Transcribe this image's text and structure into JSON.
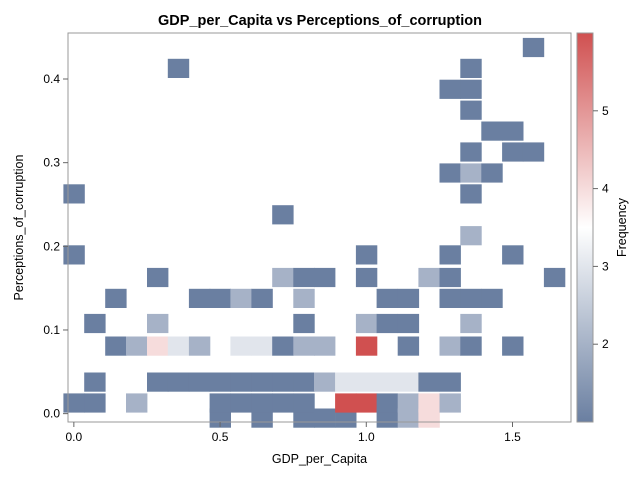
{
  "chart_data": {
    "type": "heatmap",
    "title": "GDP_per_Capita vs Perceptions_of_corruption",
    "xlabel": "GDP_per_Capita",
    "ylabel": "Perceptions_of_corruption",
    "xlim": [
      -0.02,
      1.7
    ],
    "ylim": [
      -0.01,
      0.455
    ],
    "x_ticks": [
      0.0,
      0.5,
      1.0,
      1.5
    ],
    "x_tick_labels": [
      "0.0",
      "0.5",
      "1.0",
      "1.5"
    ],
    "y_ticks": [
      0.0,
      0.1,
      0.2,
      0.3,
      0.4
    ],
    "y_tick_labels": [
      "0.0",
      "0.1",
      "0.2",
      "0.3",
      "0.4"
    ],
    "bin_width_x": 0.0714,
    "bin_height_y": 0.02235,
    "colorbar": {
      "label": "Frequency",
      "min": 1,
      "max": 6,
      "ticks": [
        2,
        3,
        4,
        5
      ],
      "tick_labels": [
        "2",
        "3",
        "4",
        "5"
      ],
      "low_color": "#6a7fa1",
      "mid_color": "#ffffff",
      "high_color": "#d05050"
    },
    "bins": [
      {
        "x": 0.0,
        "y": 0.013,
        "count": 1
      },
      {
        "x": 0.0,
        "y": 0.19,
        "count": 1
      },
      {
        "x": 0.0,
        "y": 0.263,
        "count": 1
      },
      {
        "x": 0.071,
        "y": 0.013,
        "count": 1
      },
      {
        "x": 0.071,
        "y": 0.038,
        "count": 1
      },
      {
        "x": 0.071,
        "y": 0.108,
        "count": 1
      },
      {
        "x": 0.143,
        "y": 0.081,
        "count": 1
      },
      {
        "x": 0.143,
        "y": 0.138,
        "count": 1
      },
      {
        "x": 0.214,
        "y": 0.013,
        "count": 2
      },
      {
        "x": 0.214,
        "y": 0.081,
        "count": 2
      },
      {
        "x": 0.286,
        "y": 0.038,
        "count": 1
      },
      {
        "x": 0.286,
        "y": 0.081,
        "count": 4
      },
      {
        "x": 0.286,
        "y": 0.108,
        "count": 2
      },
      {
        "x": 0.286,
        "y": 0.163,
        "count": 1
      },
      {
        "x": 0.357,
        "y": 0.038,
        "count": 1
      },
      {
        "x": 0.357,
        "y": 0.081,
        "count": 3
      },
      {
        "x": 0.357,
        "y": 0.413,
        "count": 1
      },
      {
        "x": 0.429,
        "y": 0.038,
        "count": 1
      },
      {
        "x": 0.429,
        "y": 0.081,
        "count": 2
      },
      {
        "x": 0.429,
        "y": 0.138,
        "count": 1
      },
      {
        "x": 0.5,
        "y": -0.005,
        "count": 1
      },
      {
        "x": 0.5,
        "y": 0.013,
        "count": 1
      },
      {
        "x": 0.5,
        "y": 0.038,
        "count": 1
      },
      {
        "x": 0.5,
        "y": 0.138,
        "count": 1
      },
      {
        "x": 0.571,
        "y": 0.013,
        "count": 1
      },
      {
        "x": 0.571,
        "y": 0.038,
        "count": 1
      },
      {
        "x": 0.571,
        "y": 0.081,
        "count": 3
      },
      {
        "x": 0.571,
        "y": 0.138,
        "count": 2
      },
      {
        "x": 0.643,
        "y": -0.005,
        "count": 1
      },
      {
        "x": 0.643,
        "y": 0.013,
        "count": 1
      },
      {
        "x": 0.643,
        "y": 0.038,
        "count": 1
      },
      {
        "x": 0.643,
        "y": 0.081,
        "count": 3
      },
      {
        "x": 0.643,
        "y": 0.138,
        "count": 1
      },
      {
        "x": 0.714,
        "y": 0.013,
        "count": 1
      },
      {
        "x": 0.714,
        "y": 0.038,
        "count": 1
      },
      {
        "x": 0.714,
        "y": 0.081,
        "count": 1
      },
      {
        "x": 0.714,
        "y": 0.163,
        "count": 2
      },
      {
        "x": 0.714,
        "y": 0.238,
        "count": 1
      },
      {
        "x": 0.786,
        "y": -0.005,
        "count": 1
      },
      {
        "x": 0.786,
        "y": 0.013,
        "count": 1
      },
      {
        "x": 0.786,
        "y": 0.038,
        "count": 1
      },
      {
        "x": 0.786,
        "y": 0.081,
        "count": 2
      },
      {
        "x": 0.786,
        "y": 0.108,
        "count": 1
      },
      {
        "x": 0.786,
        "y": 0.138,
        "count": 2
      },
      {
        "x": 0.786,
        "y": 0.163,
        "count": 1
      },
      {
        "x": 0.857,
        "y": -0.005,
        "count": 1
      },
      {
        "x": 0.857,
        "y": 0.038,
        "count": 2
      },
      {
        "x": 0.857,
        "y": 0.081,
        "count": 2
      },
      {
        "x": 0.857,
        "y": 0.163,
        "count": 1
      },
      {
        "x": 0.929,
        "y": -0.005,
        "count": 1
      },
      {
        "x": 0.929,
        "y": 0.013,
        "count": 6
      },
      {
        "x": 0.929,
        "y": 0.038,
        "count": 3
      },
      {
        "x": 1.0,
        "y": 0.013,
        "count": 6
      },
      {
        "x": 1.0,
        "y": 0.038,
        "count": 3
      },
      {
        "x": 1.0,
        "y": 0.081,
        "count": 6
      },
      {
        "x": 1.0,
        "y": 0.108,
        "count": 2
      },
      {
        "x": 1.0,
        "y": 0.163,
        "count": 1
      },
      {
        "x": 1.0,
        "y": 0.19,
        "count": 1
      },
      {
        "x": 1.071,
        "y": -0.005,
        "count": 1
      },
      {
        "x": 1.071,
        "y": 0.013,
        "count": 1
      },
      {
        "x": 1.071,
        "y": 0.038,
        "count": 3
      },
      {
        "x": 1.071,
        "y": 0.108,
        "count": 1
      },
      {
        "x": 1.071,
        "y": 0.138,
        "count": 1
      },
      {
        "x": 1.143,
        "y": -0.005,
        "count": 2
      },
      {
        "x": 1.143,
        "y": 0.013,
        "count": 2
      },
      {
        "x": 1.143,
        "y": 0.038,
        "count": 3
      },
      {
        "x": 1.143,
        "y": 0.081,
        "count": 1
      },
      {
        "x": 1.143,
        "y": 0.108,
        "count": 1
      },
      {
        "x": 1.143,
        "y": 0.138,
        "count": 1
      },
      {
        "x": 1.214,
        "y": -0.005,
        "count": 4
      },
      {
        "x": 1.214,
        "y": 0.013,
        "count": 4
      },
      {
        "x": 1.214,
        "y": 0.038,
        "count": 1
      },
      {
        "x": 1.214,
        "y": 0.163,
        "count": 2
      },
      {
        "x": 1.286,
        "y": 0.013,
        "count": 2
      },
      {
        "x": 1.286,
        "y": 0.038,
        "count": 1
      },
      {
        "x": 1.286,
        "y": 0.081,
        "count": 2
      },
      {
        "x": 1.286,
        "y": 0.138,
        "count": 1
      },
      {
        "x": 1.286,
        "y": 0.163,
        "count": 1
      },
      {
        "x": 1.286,
        "y": 0.19,
        "count": 1
      },
      {
        "x": 1.286,
        "y": 0.288,
        "count": 1
      },
      {
        "x": 1.286,
        "y": 0.388,
        "count": 1
      },
      {
        "x": 1.357,
        "y": 0.081,
        "count": 1
      },
      {
        "x": 1.357,
        "y": 0.108,
        "count": 2
      },
      {
        "x": 1.357,
        "y": 0.138,
        "count": 1
      },
      {
        "x": 1.357,
        "y": 0.213,
        "count": 2
      },
      {
        "x": 1.357,
        "y": 0.263,
        "count": 1
      },
      {
        "x": 1.357,
        "y": 0.288,
        "count": 2
      },
      {
        "x": 1.357,
        "y": 0.313,
        "count": 1
      },
      {
        "x": 1.357,
        "y": 0.363,
        "count": 1
      },
      {
        "x": 1.357,
        "y": 0.388,
        "count": 1
      },
      {
        "x": 1.357,
        "y": 0.413,
        "count": 1
      },
      {
        "x": 1.429,
        "y": 0.138,
        "count": 1
      },
      {
        "x": 1.429,
        "y": 0.288,
        "count": 1
      },
      {
        "x": 1.429,
        "y": 0.338,
        "count": 1
      },
      {
        "x": 1.5,
        "y": 0.081,
        "count": 1
      },
      {
        "x": 1.5,
        "y": 0.19,
        "count": 1
      },
      {
        "x": 1.5,
        "y": 0.313,
        "count": 1
      },
      {
        "x": 1.5,
        "y": 0.338,
        "count": 1
      },
      {
        "x": 1.571,
        "y": 0.313,
        "count": 1
      },
      {
        "x": 1.571,
        "y": 0.438,
        "count": 1
      },
      {
        "x": 1.643,
        "y": 0.163,
        "count": 1
      }
    ]
  }
}
